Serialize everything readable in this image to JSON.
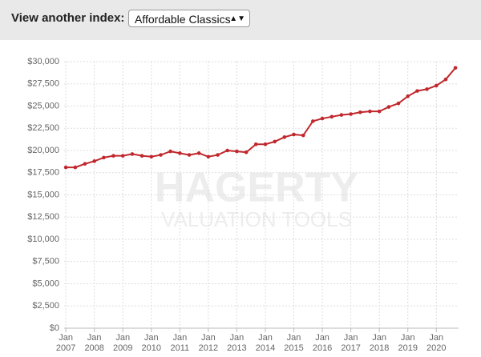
{
  "header": {
    "label": "View another index:",
    "selected": "Affordable Classics"
  },
  "chart_data": {
    "type": "line",
    "watermark": {
      "brand": "HAGERTY",
      "tagline": "VALUATION TOOLS"
    },
    "x": [
      2007,
      2007.33,
      2007.67,
      2008,
      2008.33,
      2008.67,
      2009,
      2009.33,
      2009.67,
      2010,
      2010.33,
      2010.67,
      2011,
      2011.33,
      2011.67,
      2012,
      2012.33,
      2012.67,
      2013,
      2013.33,
      2013.67,
      2014,
      2014.33,
      2014.67,
      2015,
      2015.33,
      2015.67,
      2016,
      2016.33,
      2016.67,
      2017,
      2017.33,
      2017.67,
      2018,
      2018.33,
      2018.67,
      2019,
      2019.33,
      2019.67,
      2020,
      2020.33,
      2020.67
    ],
    "values": [
      18100,
      18100,
      18500,
      18800,
      19200,
      19400,
      19400,
      19600,
      19400,
      19300,
      19500,
      19900,
      19700,
      19500,
      19700,
      19300,
      19500,
      20000,
      19900,
      19800,
      20700,
      20700,
      21000,
      21500,
      21800,
      21700,
      23300,
      23600,
      23800,
      24000,
      24100,
      24300,
      24400,
      24400,
      24900,
      25300,
      26100,
      26700,
      26900,
      27300,
      28000,
      29300
    ],
    "color": "#c0282d",
    "xlim": [
      2006.94,
      2020.78
    ],
    "xticks": [
      {
        "value": 2007,
        "label": "Jan 2007"
      },
      {
        "value": 2008,
        "label": "Jan 2008"
      },
      {
        "value": 2009,
        "label": "Jan 2009"
      },
      {
        "value": 2010,
        "label": "Jan 2010"
      },
      {
        "value": 2011,
        "label": "Jan 2011"
      },
      {
        "value": 2012,
        "label": "Jan 2012"
      },
      {
        "value": 2013,
        "label": "Jan 2013"
      },
      {
        "value": 2014,
        "label": "Jan 2014"
      },
      {
        "value": 2015,
        "label": "Jan 2015"
      },
      {
        "value": 2016,
        "label": "Jan 2016"
      },
      {
        "value": 2017,
        "label": "Jan 2017"
      },
      {
        "value": 2018,
        "label": "Jan 2018"
      },
      {
        "value": 2019,
        "label": "Jan 2019"
      },
      {
        "value": 2020,
        "label": "Jan 2020"
      }
    ],
    "ylim": [
      0,
      30000
    ],
    "yticks": [
      {
        "value": 0,
        "label": "$0"
      },
      {
        "value": 2500,
        "label": "$2,500"
      },
      {
        "value": 5000,
        "label": "$5,000"
      },
      {
        "value": 7500,
        "label": "$7,500"
      },
      {
        "value": 10000,
        "label": "$10,000"
      },
      {
        "value": 12500,
        "label": "$12,500"
      },
      {
        "value": 15000,
        "label": "$15,000"
      },
      {
        "value": 17500,
        "label": "$17,500"
      },
      {
        "value": 20000,
        "label": "$20,000"
      },
      {
        "value": 22500,
        "label": "$22,500"
      },
      {
        "value": 25000,
        "label": "$25,000"
      },
      {
        "value": 27500,
        "label": "$27,500"
      },
      {
        "value": 30000,
        "label": "$30,000"
      }
    ],
    "grid": true
  }
}
